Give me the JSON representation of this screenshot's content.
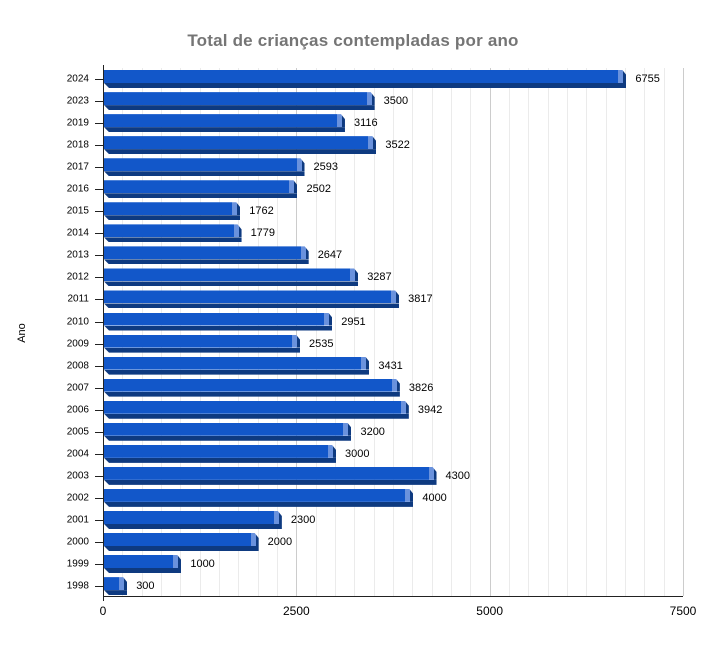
{
  "chart_data": {
    "type": "bar",
    "orientation": "horizontal",
    "title": "Total de crianças contempladas por ano",
    "xlabel": "",
    "ylabel": "Ano",
    "legend": "none",
    "grid": true,
    "categories": [
      "2024",
      "2023",
      "2019",
      "2018",
      "2017",
      "2016",
      "2015",
      "2014",
      "2013",
      "2012",
      "2011",
      "2010",
      "2009",
      "2008",
      "2007",
      "2006",
      "2005",
      "2004",
      "2003",
      "2002",
      "2001",
      "2000",
      "1999",
      "1998"
    ],
    "values": [
      6755,
      3500,
      3116,
      3522,
      2593,
      2502,
      1762,
      1779,
      2647,
      3287,
      3817,
      2951,
      2535,
      3431,
      3826,
      3942,
      3200,
      3000,
      4300,
      4000,
      2300,
      2000,
      1000,
      300
    ],
    "value_labels": [
      "6755",
      "3500",
      "3116",
      "3522",
      "2593",
      "2502",
      "1762",
      "1779",
      "2647",
      "3287",
      "3817",
      "2951",
      "2535",
      "3431",
      "3826",
      "3942",
      "3200",
      "3000",
      "4300",
      "4000",
      "2300",
      "2000",
      "1000",
      "300"
    ],
    "xlim": [
      0,
      7500
    ],
    "x_ticks": [
      "0",
      "2500",
      "5000",
      "7500"
    ],
    "minor_grid_step": 250,
    "colors": {
      "bar": "#1257c9",
      "bar_dark": "#0e3a80",
      "bar_highlight": "#6a92dd",
      "title": "#757575",
      "label": "#000000",
      "grid_minor": "#ebebeb",
      "grid_major": "#cccccc",
      "axis": "#222222",
      "background": "#ffffff"
    }
  }
}
